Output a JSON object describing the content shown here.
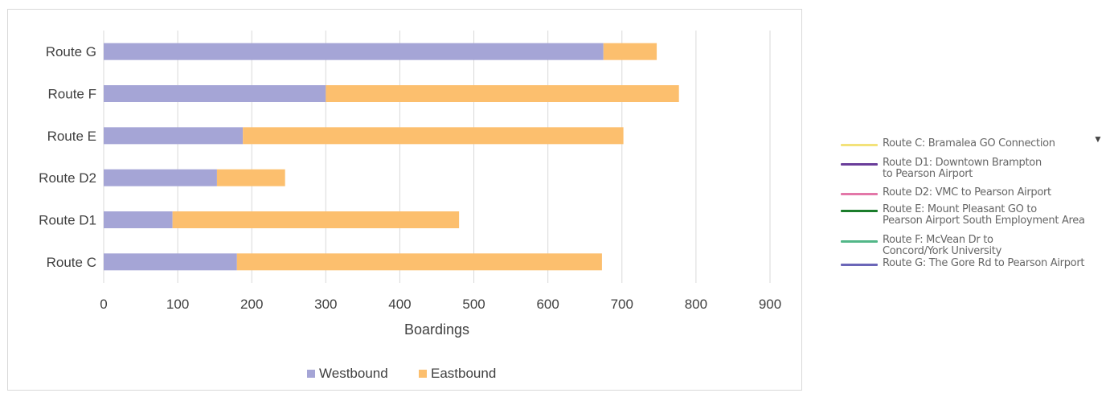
{
  "chart_data": {
    "type": "bar",
    "orientation": "horizontal",
    "stacked": true,
    "categories": [
      "Route G",
      "Route F",
      "Route E",
      "Route D2",
      "Route D1",
      "Route C"
    ],
    "series": [
      {
        "name": "Westbound",
        "values": [
          675,
          300,
          188,
          153,
          93,
          180
        ],
        "color": "#a5a5d6"
      },
      {
        "name": "Eastbound",
        "values": [
          72,
          477,
          514,
          92,
          387,
          493
        ],
        "color": "#fcbf6e"
      }
    ],
    "xlabel": "Boardings",
    "xlim": [
      0,
      900
    ],
    "xticks": [
      0,
      100,
      200,
      300,
      400,
      500,
      600,
      700,
      800,
      900
    ],
    "grid": true,
    "legend_position": "bottom"
  },
  "route_legend": {
    "items": [
      {
        "label": "Route C: Bramalea GO Connection",
        "color": "#f3e27a"
      },
      {
        "label": "Route D1: Downtown Brampton\nto Pearson  Airport",
        "color": "#6a3d9a"
      },
      {
        "label": "Route D2: VMC to Pearson Airport",
        "color": "#e377a8"
      },
      {
        "label": "Route E: Mount Pleasant GO to\nPearson Airport South Employment Area",
        "color": "#1b7d2b"
      },
      {
        "label": "Route F: McVean Dr to\nConcord/York University",
        "color": "#52b788"
      },
      {
        "label": "Route G: The Gore Rd to Pearson Airport",
        "color": "#6b66b8"
      }
    ],
    "dropdown_icon": "triangle-down-icon"
  }
}
